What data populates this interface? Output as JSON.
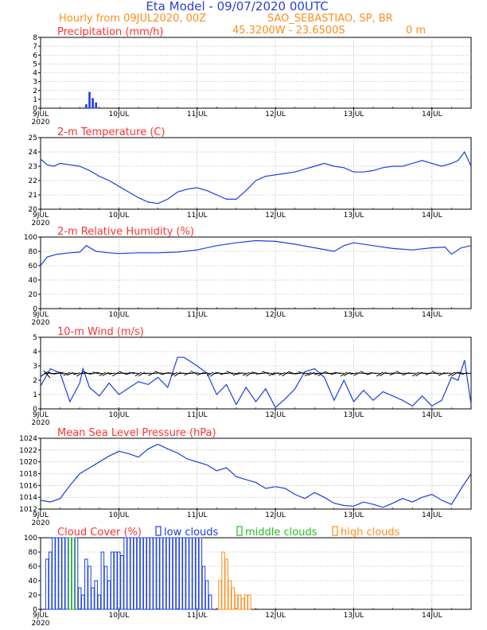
{
  "header": {
    "title": "Eta Model - 09/07/2020 00UTC",
    "subtitle": "Hourly from 09JUL2020, 00Z",
    "station": "SAO_SEBASTIAO, SP, BR",
    "coords": "45.3200W - 23.6500S",
    "elevation": "0  m",
    "title_color": "#2a3fd6",
    "info_color": "#ff8c1a"
  },
  "x_axis": {
    "start": "2020-07-09T00",
    "end": "2020-07-14T12",
    "ticks": [
      {
        "date": "2020-07-09",
        "label": "9JUL",
        "year": "2020"
      },
      {
        "date": "2020-07-10",
        "label": "10JUL"
      },
      {
        "date": "2020-07-11",
        "label": "11JUL"
      },
      {
        "date": "2020-07-12",
        "label": "12JUL"
      },
      {
        "date": "2020-07-13",
        "label": "13JUL"
      },
      {
        "date": "2020-07-14",
        "label": "14JUL"
      }
    ]
  },
  "colors": {
    "series": "#1a3ee0",
    "title": "#ff3030",
    "grid": "#888888",
    "low": "#1a3ee0",
    "middle": "#22bb22",
    "high": "#ff8c1a",
    "wind_arrow": "#000000"
  },
  "chart_data": [
    {
      "type": "bar",
      "title": "Precipitation (mm/h)",
      "ylim": [
        0,
        8
      ],
      "yticks": [
        0,
        1,
        2,
        3,
        4,
        5,
        6,
        7,
        8
      ],
      "grid": true,
      "series": [
        {
          "x": [
            "2020-07-09T14",
            "2020-07-09T15",
            "2020-07-09T16",
            "2020-07-09T17"
          ],
          "values": [
            0.4,
            1.8,
            1.1,
            0.6
          ]
        }
      ]
    },
    {
      "type": "line",
      "title": "2-m Temperature (C)",
      "ylim": [
        20,
        25
      ],
      "yticks": [
        20,
        21,
        22,
        23,
        24,
        25
      ],
      "grid": true,
      "series": [
        {
          "x": [
            "2020-07-09T00",
            "2020-07-09T02",
            "2020-07-09T04",
            "2020-07-09T06",
            "2020-07-09T09",
            "2020-07-09T12",
            "2020-07-09T15",
            "2020-07-09T18",
            "2020-07-09T21",
            "2020-07-10T00",
            "2020-07-10T03",
            "2020-07-10T06",
            "2020-07-10T09",
            "2020-07-10T12",
            "2020-07-10T15",
            "2020-07-10T18",
            "2020-07-10T21",
            "2020-07-11T00",
            "2020-07-11T03",
            "2020-07-11T06",
            "2020-07-11T09",
            "2020-07-11T12",
            "2020-07-11T15",
            "2020-07-11T18",
            "2020-07-11T21",
            "2020-07-12T00",
            "2020-07-12T03",
            "2020-07-12T06",
            "2020-07-12T09",
            "2020-07-12T12",
            "2020-07-12T15",
            "2020-07-12T18",
            "2020-07-12T21",
            "2020-07-13T00",
            "2020-07-13T03",
            "2020-07-13T06",
            "2020-07-13T09",
            "2020-07-13T12",
            "2020-07-13T15",
            "2020-07-13T18",
            "2020-07-13T21",
            "2020-07-14T00",
            "2020-07-14T03",
            "2020-07-14T06",
            "2020-07-14T08",
            "2020-07-14T10",
            "2020-07-14T12"
          ],
          "values": [
            23.5,
            23.1,
            23.0,
            23.2,
            23.1,
            23.0,
            22.7,
            22.3,
            22.0,
            21.6,
            21.2,
            20.8,
            20.5,
            20.4,
            20.7,
            21.2,
            21.4,
            21.5,
            21.3,
            21.0,
            20.7,
            20.7,
            21.3,
            22.0,
            22.3,
            22.4,
            22.5,
            22.6,
            22.8,
            23.0,
            23.2,
            23.0,
            22.9,
            22.6,
            22.6,
            22.7,
            22.9,
            23.0,
            23.0,
            23.2,
            23.4,
            23.2,
            23.0,
            23.2,
            23.4,
            24.0,
            23.0
          ]
        }
      ]
    },
    {
      "type": "line",
      "title": "2-m Relative Humidity (%)",
      "ylim": [
        0,
        100
      ],
      "yticks": [
        0,
        20,
        40,
        60,
        80,
        100
      ],
      "grid": true,
      "series": [
        {
          "x": [
            "2020-07-09T00",
            "2020-07-09T02",
            "2020-07-09T05",
            "2020-07-09T09",
            "2020-07-09T12",
            "2020-07-09T14",
            "2020-07-09T17",
            "2020-07-09T21",
            "2020-07-10T00",
            "2020-07-10T06",
            "2020-07-10T12",
            "2020-07-10T18",
            "2020-07-11T00",
            "2020-07-11T06",
            "2020-07-11T12",
            "2020-07-11T18",
            "2020-07-12T00",
            "2020-07-12T06",
            "2020-07-12T12",
            "2020-07-12T18",
            "2020-07-12T21",
            "2020-07-13T00",
            "2020-07-13T06",
            "2020-07-13T12",
            "2020-07-13T18",
            "2020-07-14T00",
            "2020-07-14T04",
            "2020-07-14T06",
            "2020-07-14T09",
            "2020-07-14T12"
          ],
          "values": [
            60,
            72,
            76,
            78,
            79,
            88,
            80,
            78,
            77,
            78,
            78,
            79,
            82,
            88,
            92,
            95,
            94,
            90,
            85,
            80,
            88,
            92,
            88,
            84,
            82,
            85,
            86,
            76,
            85,
            88
          ]
        }
      ]
    },
    {
      "type": "line",
      "title": "10-m Wind (m/s)",
      "ylim": [
        0,
        5
      ],
      "yticks": [
        0,
        1,
        2,
        3,
        4,
        5
      ],
      "grid": true,
      "wind_arrows": true,
      "series": [
        {
          "x": [
            "2020-07-09T00",
            "2020-07-09T03",
            "2020-07-09T06",
            "2020-07-09T09",
            "2020-07-09T12",
            "2020-07-09T13",
            "2020-07-09T15",
            "2020-07-09T18",
            "2020-07-09T21",
            "2020-07-10T00",
            "2020-07-10T06",
            "2020-07-10T09",
            "2020-07-10T12",
            "2020-07-10T15",
            "2020-07-10T18",
            "2020-07-10T20",
            "2020-07-11T00",
            "2020-07-11T03",
            "2020-07-11T06",
            "2020-07-11T09",
            "2020-07-11T12",
            "2020-07-11T15",
            "2020-07-11T18",
            "2020-07-11T21",
            "2020-07-12T00",
            "2020-07-12T03",
            "2020-07-12T06",
            "2020-07-12T09",
            "2020-07-12T12",
            "2020-07-12T15",
            "2020-07-12T18",
            "2020-07-12T21",
            "2020-07-13T00",
            "2020-07-13T03",
            "2020-07-13T06",
            "2020-07-13T09",
            "2020-07-13T12",
            "2020-07-13T15",
            "2020-07-13T18",
            "2020-07-13T21",
            "2020-07-14T00",
            "2020-07-14T03",
            "2020-07-14T06",
            "2020-07-14T08",
            "2020-07-14T10",
            "2020-07-14T12"
          ],
          "values": [
            1.6,
            2.8,
            2.5,
            0.5,
            1.8,
            2.8,
            1.5,
            0.9,
            1.8,
            1.0,
            1.9,
            1.7,
            2.2,
            1.5,
            3.6,
            3.6,
            3.0,
            2.5,
            1.0,
            1.7,
            0.3,
            1.5,
            0.5,
            1.4,
            0.1,
            0.7,
            1.4,
            2.6,
            2.8,
            2.2,
            0.6,
            2.0,
            0.5,
            1.3,
            0.6,
            1.2,
            0.9,
            0.6,
            0.2,
            0.9,
            0.2,
            0.6,
            2.2,
            2.0,
            3.4,
            0.3
          ]
        }
      ]
    },
    {
      "type": "line",
      "title": "Mean Sea Level Pressure (hPa)",
      "ylim": [
        1012,
        1024
      ],
      "yticks": [
        1012,
        1014,
        1016,
        1018,
        1020,
        1022,
        1024
      ],
      "grid": true,
      "series": [
        {
          "x": [
            "2020-07-09T00",
            "2020-07-09T03",
            "2020-07-09T06",
            "2020-07-09T09",
            "2020-07-09T12",
            "2020-07-09T15",
            "2020-07-09T18",
            "2020-07-09T21",
            "2020-07-10T00",
            "2020-07-10T03",
            "2020-07-10T06",
            "2020-07-10T09",
            "2020-07-10T12",
            "2020-07-10T15",
            "2020-07-10T18",
            "2020-07-10T21",
            "2020-07-11T00",
            "2020-07-11T03",
            "2020-07-11T06",
            "2020-07-11T09",
            "2020-07-11T12",
            "2020-07-11T15",
            "2020-07-11T18",
            "2020-07-11T21",
            "2020-07-12T00",
            "2020-07-12T03",
            "2020-07-12T06",
            "2020-07-12T09",
            "2020-07-12T12",
            "2020-07-12T15",
            "2020-07-12T18",
            "2020-07-12T21",
            "2020-07-13T00",
            "2020-07-13T03",
            "2020-07-13T06",
            "2020-07-13T09",
            "2020-07-13T12",
            "2020-07-13T15",
            "2020-07-13T18",
            "2020-07-13T21",
            "2020-07-14T00",
            "2020-07-14T03",
            "2020-07-14T06",
            "2020-07-14T09",
            "2020-07-14T12"
          ],
          "values": [
            1013.5,
            1013.2,
            1013.8,
            1016.0,
            1018.0,
            1019.0,
            1020.0,
            1021.0,
            1021.8,
            1021.4,
            1020.8,
            1022.2,
            1023.0,
            1022.2,
            1021.5,
            1020.5,
            1020.0,
            1019.5,
            1018.5,
            1019.0,
            1017.5,
            1017.0,
            1016.5,
            1015.5,
            1015.8,
            1015.5,
            1014.5,
            1013.8,
            1014.8,
            1014.0,
            1013.0,
            1012.6,
            1012.5,
            1013.2,
            1012.8,
            1012.3,
            1013.0,
            1013.8,
            1013.2,
            1014.0,
            1014.5,
            1013.5,
            1012.8,
            1015.5,
            1018.0
          ]
        }
      ]
    },
    {
      "type": "bar",
      "title": "Cloud Cover (%)",
      "ylim": [
        0,
        100
      ],
      "yticks": [
        0,
        20,
        40,
        60,
        80,
        100
      ],
      "grid": true,
      "legend": "top",
      "series": [
        {
          "name": "low clouds",
          "x": [
            "2020-07-09T02",
            "2020-07-09T03",
            "2020-07-09T04",
            "2020-07-09T05",
            "2020-07-09T06",
            "2020-07-09T07",
            "2020-07-09T08",
            "2020-07-09T09",
            "2020-07-09T10",
            "2020-07-09T11",
            "2020-07-09T12",
            "2020-07-09T13",
            "2020-07-09T14",
            "2020-07-09T15",
            "2020-07-09T16",
            "2020-07-09T17",
            "2020-07-09T18",
            "2020-07-09T19",
            "2020-07-09T20",
            "2020-07-09T21",
            "2020-07-09T22",
            "2020-07-09T23",
            "2020-07-10T00",
            "2020-07-10T01",
            "2020-07-10T02",
            "2020-07-10T03",
            "2020-07-10T04",
            "2020-07-10T05",
            "2020-07-10T06",
            "2020-07-10T07",
            "2020-07-10T08",
            "2020-07-10T09",
            "2020-07-10T10",
            "2020-07-10T11",
            "2020-07-10T12",
            "2020-07-10T13",
            "2020-07-10T14",
            "2020-07-10T15",
            "2020-07-10T16",
            "2020-07-10T17",
            "2020-07-10T18",
            "2020-07-10T19",
            "2020-07-10T20",
            "2020-07-10T21",
            "2020-07-10T22",
            "2020-07-10T23",
            "2020-07-11T00",
            "2020-07-11T01",
            "2020-07-11T02",
            "2020-07-11T03",
            "2020-07-11T04"
          ],
          "values": [
            70,
            80,
            100,
            100,
            100,
            100,
            100,
            100,
            100,
            100,
            30,
            20,
            70,
            60,
            30,
            40,
            20,
            80,
            60,
            40,
            80,
            80,
            80,
            75,
            100,
            100,
            100,
            100,
            100,
            100,
            100,
            100,
            100,
            100,
            100,
            100,
            100,
            100,
            100,
            100,
            100,
            100,
            100,
            100,
            100,
            100,
            100,
            100,
            60,
            40,
            20
          ]
        },
        {
          "name": "middle clouds",
          "x": [
            "2020-07-09T09",
            "2020-07-09T10"
          ],
          "values": [
            100,
            100
          ]
        },
        {
          "name": "high clouds",
          "x": [
            "2020-07-11T07",
            "2020-07-11T08",
            "2020-07-11T09",
            "2020-07-11T10",
            "2020-07-11T11",
            "2020-07-11T12",
            "2020-07-11T13",
            "2020-07-11T14",
            "2020-07-11T15",
            "2020-07-11T16"
          ],
          "values": [
            40,
            80,
            70,
            40,
            30,
            20,
            20,
            15,
            20,
            20
          ]
        }
      ]
    }
  ]
}
